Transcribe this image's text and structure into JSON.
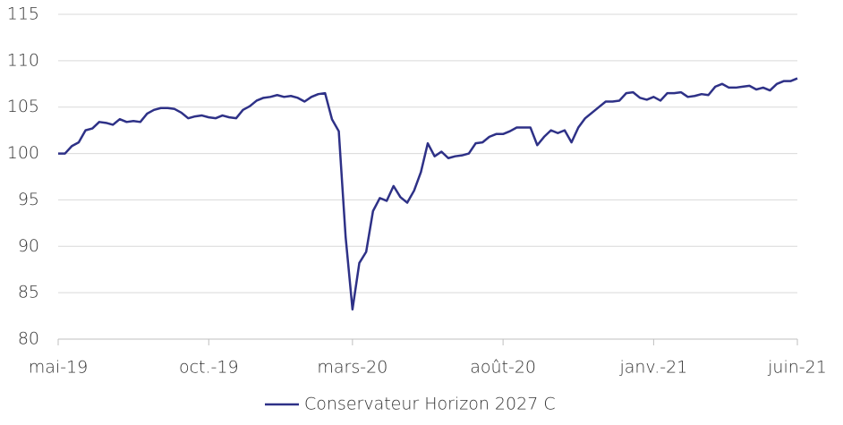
{
  "chart_data": {
    "type": "line",
    "categories": [
      "mai-19",
      null,
      null,
      null,
      null,
      null,
      null,
      null,
      null,
      null,
      null,
      null,
      null,
      null,
      null,
      null,
      null,
      null,
      null,
      null,
      null,
      null,
      "oct.-19",
      null,
      null,
      null,
      null,
      null,
      null,
      null,
      null,
      null,
      null,
      null,
      null,
      null,
      null,
      null,
      null,
      null,
      null,
      null,
      null,
      "mars-20",
      null,
      null,
      null,
      null,
      null,
      null,
      null,
      null,
      null,
      null,
      null,
      null,
      null,
      null,
      null,
      null,
      null,
      null,
      null,
      null,
      null,
      "août-20",
      null,
      null,
      null,
      null,
      null,
      null,
      null,
      null,
      null,
      null,
      null,
      null,
      null,
      null,
      null,
      null,
      null,
      null,
      null,
      null,
      null,
      "janv.-21",
      null,
      null,
      null,
      null,
      null,
      null,
      null,
      null,
      null,
      null,
      null,
      null,
      null,
      null,
      null,
      null,
      null,
      null,
      null,
      null,
      "juin-21"
    ],
    "series": [
      {
        "name": "Conservateur Horizon 2027 C",
        "color": "#2e3187",
        "values": [
          100,
          100,
          100.8,
          101.2,
          102.5,
          102.7,
          103.4,
          103.3,
          103.1,
          103.7,
          103.4,
          103.5,
          103.4,
          104.3,
          104.7,
          104.9,
          104.9,
          104.8,
          104.4,
          103.8,
          104.0,
          104.1,
          103.9,
          103.8,
          104.1,
          103.9,
          103.8,
          104.7,
          105.1,
          105.7,
          106.0,
          106.1,
          106.3,
          106.1,
          106.2,
          106.0,
          105.6,
          106.1,
          106.4,
          106.5,
          103.7,
          102.4,
          91,
          83.2,
          88.2,
          89.4,
          93.8,
          95.2,
          94.9,
          96.5,
          95.3,
          94.7,
          96.0,
          98.0,
          101.1,
          99.7,
          100.2,
          99.5,
          99.7,
          99.8,
          100.0,
          101.1,
          101.2,
          101.8,
          102.1,
          102.1,
          102.4,
          102.8,
          102.8,
          102.8,
          100.9,
          101.8,
          102.5,
          102.2,
          102.5,
          101.2,
          102.8,
          103.8,
          104.4,
          105.0,
          105.6,
          105.6,
          105.7,
          106.5,
          106.6,
          106.0,
          105.8,
          106.1,
          105.7,
          106.5,
          106.5,
          106.6,
          106.1,
          106.2,
          106.4,
          106.3,
          107.2,
          107.5,
          107.1,
          107.1,
          107.2,
          107.3,
          106.9,
          107.1,
          106.8,
          107.5,
          107.8,
          107.8,
          108.1
        ]
      }
    ],
    "ylim": [
      80,
      115
    ],
    "yticks": [
      80,
      85,
      90,
      95,
      100,
      105,
      110,
      115
    ],
    "grid": true,
    "legend": "bottom"
  }
}
